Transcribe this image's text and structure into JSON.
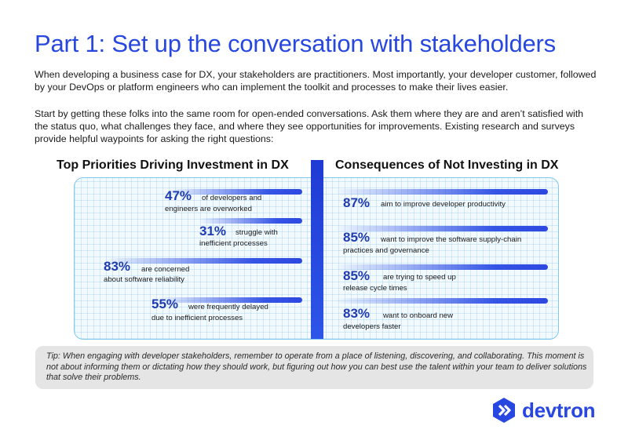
{
  "title": "Part 1: Set up the conversation with stakeholders",
  "intro": {
    "p1": "When developing a business case for DX, your stakeholders are practitioners. Most importantly, your developer customer, followed by your DevOps or platform engineers who can implement the toolkit and processes to make their lives easier.",
    "p2": "Start by getting these folks into the same room for open-ended conversations. Ask them where they are and aren’t satisfied with the status quo, what challenges they face, and where they see opportunities for improvements. Existing research and surveys provide helpful waypoints for asking the right questions:"
  },
  "left": {
    "heading": "Top Priorities Driving Investment in DX",
    "stats": [
      {
        "pct": "47%",
        "line1": "of developers and",
        "line2": "engineers are overworked",
        "value": 47
      },
      {
        "pct": "31%",
        "line1": "struggle with",
        "line2": "inefficient processes",
        "value": 31
      },
      {
        "pct": "83%",
        "line1": "are concerned",
        "line2": "about software reliability",
        "value": 83
      },
      {
        "pct": "55%",
        "line1": "were frequently delayed",
        "line2": "due to inefficient processes",
        "value": 55
      }
    ]
  },
  "right": {
    "heading": "Consequences of Not Investing in DX",
    "stats": [
      {
        "pct": "87%",
        "line1": "aim to improve developer productivity",
        "line2": "",
        "value": 87
      },
      {
        "pct": "85%",
        "line1": "want to improve the software supply-chain",
        "line2": "practices and governance",
        "value": 85
      },
      {
        "pct": "85%",
        "line1": "are trying to speed up",
        "line2": "release cycle times",
        "value": 85
      },
      {
        "pct": "83%",
        "line1": "want to onboard new",
        "line2": "developers faster",
        "value": 83
      }
    ]
  },
  "tip": "Tip: When engaging with developer stakeholders, remember to operate from a place of listening, discovering, and collaborating. This moment is not about informing them or dictating how they should work, but figuring out how you can best use the talent within your team to deliver solutions that solve their problems.",
  "logo": {
    "text": "devtron",
    "icon": "devtron-logo-icon"
  },
  "colors": {
    "accent": "#2747e0",
    "bar": "#3555e6",
    "panel_border": "#7fc8ee",
    "tip_bg": "#e5e5e5"
  }
}
